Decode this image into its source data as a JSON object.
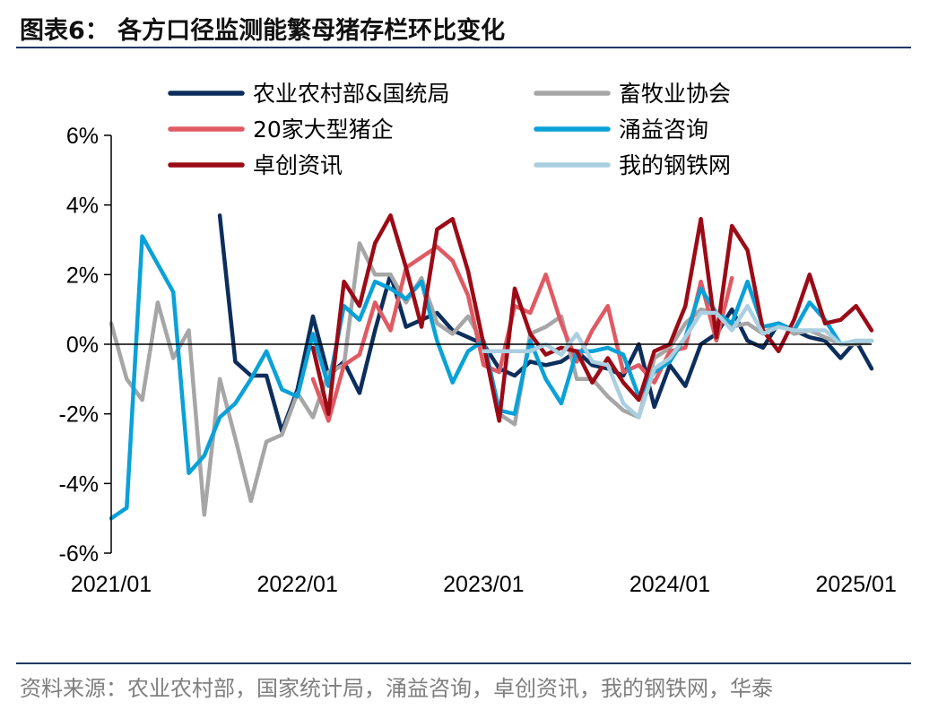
{
  "title": "图表6： 各方口径监测能繁母猪存栏环比变化",
  "source": "资料来源：农业农村部，国家统计局，涌益咨询，卓创资讯，我的钢铁网，华泰",
  "chart_data": {
    "type": "line",
    "title": "各方口径监测能繁母猪存栏环比变化",
    "xlabel": "",
    "ylabel": "",
    "y_unit": "%",
    "ylim": [
      -6,
      6
    ],
    "yticks": [
      6,
      4,
      2,
      0,
      -2,
      -4,
      -6
    ],
    "ytick_labels": [
      "6%",
      "4%",
      "2%",
      "0%",
      "-2%",
      "-4%",
      "-6%"
    ],
    "xlim": [
      "2021/01",
      "2025/02"
    ],
    "xtick_labels": [
      "2021/01",
      "2022/01",
      "2023/01",
      "2024/01",
      "2025/01"
    ],
    "grid": false,
    "legend_position": "top",
    "series": [
      {
        "name": "农业农村部&国统局",
        "color": "#0d2e5c",
        "x": [
          "2021/08",
          "2021/09",
          "2021/10",
          "2021/11",
          "2021/12",
          "2022/01",
          "2022/02",
          "2022/03",
          "2022/04",
          "2022/05",
          "2022/06",
          "2022/07",
          "2022/08",
          "2022/09",
          "2022/10",
          "2022/11",
          "2022/12",
          "2023/01",
          "2023/02",
          "2023/03",
          "2023/04",
          "2023/05",
          "2023/06",
          "2023/07",
          "2023/08",
          "2023/09",
          "2023/10",
          "2023/11",
          "2023/12",
          "2024/01",
          "2024/02",
          "2024/03",
          "2024/04",
          "2024/05",
          "2024/06",
          "2024/07",
          "2024/08",
          "2024/09",
          "2024/10",
          "2024/11",
          "2024/12",
          "2025/01",
          "2025/02"
        ],
        "values": [
          3.7,
          -0.5,
          -0.9,
          -0.9,
          -2.5,
          -1.3,
          0.8,
          -0.9,
          -0.5,
          -1.4,
          0.4,
          2.0,
          0.5,
          0.7,
          0.9,
          0.4,
          0.2,
          0.0,
          -0.7,
          -0.9,
          -0.5,
          -0.6,
          -0.5,
          -0.2,
          -0.6,
          -0.7,
          -0.9,
          0.0,
          -1.8,
          -0.6,
          -1.2,
          0.0,
          0.3,
          1.0,
          0.1,
          -0.1,
          0.6,
          0.4,
          0.2,
          0.1,
          -0.4,
          0.1,
          -0.7
        ]
      },
      {
        "name": "畜牧业协会",
        "color": "#a6a6a6",
        "x": [
          "2021/01",
          "2021/02",
          "2021/03",
          "2021/04",
          "2021/05",
          "2021/06",
          "2021/07",
          "2021/08",
          "2021/09",
          "2021/10",
          "2021/11",
          "2021/12",
          "2022/01",
          "2022/02",
          "2022/03",
          "2022/04",
          "2022/05",
          "2022/06",
          "2022/07",
          "2022/08",
          "2022/09",
          "2022/10",
          "2022/11",
          "2022/12",
          "2023/01",
          "2023/02",
          "2023/03",
          "2023/04",
          "2023/05",
          "2023/06",
          "2023/07",
          "2023/08",
          "2023/09",
          "2023/10",
          "2023/11",
          "2023/12",
          "2024/01",
          "2024/02",
          "2024/03",
          "2024/04",
          "2024/05",
          "2024/06",
          "2024/07",
          "2024/08",
          "2024/09",
          "2024/10",
          "2024/11",
          "2024/12",
          "2025/01",
          "2025/02"
        ],
        "values": [
          0.6,
          -1.0,
          -1.6,
          1.2,
          -0.4,
          0.4,
          -4.9,
          -1.0,
          -2.7,
          -4.5,
          -2.8,
          -2.6,
          -1.4,
          -2.1,
          -0.8,
          -0.6,
          2.9,
          2.0,
          2.0,
          1.2,
          1.9,
          0.6,
          0.3,
          0.8,
          0.0,
          -2.0,
          -2.3,
          0.3,
          0.5,
          0.8,
          -1.0,
          -1.0,
          -1.5,
          -1.9,
          -2.1,
          -0.4,
          -0.1,
          0.6,
          1.0,
          0.9,
          0.5,
          0.6,
          0.3,
          0.6,
          0.3,
          0.4,
          0.2,
          0.0,
          0.0,
          0.1
        ]
      },
      {
        "name": "20家大型猪企",
        "color": "#e05a63",
        "x": [
          "2022/02",
          "2022/03",
          "2022/04",
          "2022/05",
          "2022/06",
          "2022/07",
          "2022/08",
          "2022/09",
          "2022/10",
          "2022/11",
          "2022/12",
          "2023/01",
          "2023/02",
          "2023/03",
          "2023/04",
          "2023/05",
          "2023/06",
          "2023/07",
          "2023/08",
          "2023/09",
          "2023/10",
          "2023/11",
          "2023/12",
          "2024/01",
          "2024/02",
          "2024/03",
          "2024/04",
          "2024/05",
          "2024/06"
        ],
        "values": [
          -1.0,
          -2.2,
          -0.6,
          -0.3,
          1.2,
          0.4,
          2.2,
          2.5,
          2.8,
          2.4,
          1.4,
          -0.6,
          -0.8,
          1.1,
          0.9,
          2.0,
          0.6,
          -0.5,
          0.4,
          1.1,
          -0.8,
          -0.6,
          -1.1,
          -0.2,
          -0.1,
          1.8,
          0.1,
          1.9,
          null
        ]
      },
      {
        "name": "涌益咨询",
        "color": "#0aa1d8",
        "x": [
          "2021/01",
          "2021/02",
          "2021/03",
          "2021/04",
          "2021/05",
          "2021/06",
          "2021/07",
          "2021/08",
          "2021/09",
          "2021/10",
          "2021/11",
          "2021/12",
          "2022/01",
          "2022/02",
          "2022/03",
          "2022/04",
          "2022/05",
          "2022/06",
          "2022/07",
          "2022/08",
          "2022/09",
          "2022/10",
          "2022/11",
          "2022/12",
          "2023/01",
          "2023/02",
          "2023/03",
          "2023/04",
          "2023/05",
          "2023/06",
          "2023/07",
          "2023/08",
          "2023/09",
          "2023/10",
          "2023/11",
          "2023/12",
          "2024/01",
          "2024/02",
          "2024/03",
          "2024/04",
          "2024/05",
          "2024/06",
          "2024/07",
          "2024/08",
          "2024/09",
          "2024/10",
          "2024/11",
          "2024/12",
          "2025/01",
          "2025/02"
        ],
        "values": [
          -5.0,
          -4.7,
          3.1,
          2.3,
          1.5,
          -3.7,
          -3.2,
          -2.1,
          -1.7,
          -1.0,
          -0.2,
          -1.3,
          -1.5,
          0.3,
          -1.2,
          1.1,
          0.7,
          1.8,
          1.6,
          1.3,
          1.8,
          0.1,
          -1.1,
          -0.2,
          0.1,
          -1.9,
          -2.0,
          0.1,
          -1.0,
          -1.7,
          -0.2,
          -0.2,
          -0.1,
          -0.3,
          -1.5,
          -0.8,
          -0.5,
          0.2,
          1.6,
          0.9,
          0.6,
          1.8,
          0.5,
          0.6,
          0.4,
          1.2,
          0.7,
          0.0,
          0.1,
          0.1
        ]
      },
      {
        "name": "卓创资讯",
        "color": "#9b0b16",
        "x": [
          "2022/02",
          "2022/03",
          "2022/04",
          "2022/05",
          "2022/06",
          "2022/07",
          "2022/08",
          "2022/09",
          "2022/10",
          "2022/11",
          "2022/12",
          "2023/01",
          "2023/02",
          "2023/03",
          "2023/04",
          "2023/05",
          "2023/06",
          "2023/07",
          "2023/08",
          "2023/09",
          "2023/10",
          "2023/11",
          "2023/12",
          "2024/01",
          "2024/02",
          "2024/03",
          "2024/04",
          "2024/05",
          "2024/06",
          "2024/07",
          "2024/08",
          "2024/09",
          "2024/10",
          "2024/11",
          "2024/12",
          "2025/01",
          "2025/02"
        ],
        "values": [
          -0.1,
          -2.0,
          1.8,
          1.1,
          2.9,
          3.7,
          2.2,
          0.5,
          3.3,
          3.6,
          2.1,
          0.0,
          -2.2,
          1.6,
          0.3,
          -0.3,
          -0.1,
          -0.2,
          -1.1,
          -0.4,
          -1.1,
          -1.6,
          -0.2,
          0.0,
          1.1,
          3.6,
          0.2,
          3.4,
          2.7,
          0.4,
          -0.2,
          0.7,
          2.0,
          0.6,
          0.7,
          1.1,
          0.4
        ]
      },
      {
        "name": "我的钢铁网",
        "color": "#a9cfe0",
        "x": [
          "2023/01",
          "2023/02",
          "2023/03",
          "2023/04",
          "2023/05",
          "2023/06",
          "2023/07",
          "2023/08",
          "2023/09",
          "2023/10",
          "2023/11",
          "2023/12",
          "2024/01",
          "2024/02",
          "2024/03",
          "2024/04",
          "2024/05",
          "2024/06",
          "2024/07",
          "2024/08",
          "2024/09",
          "2024/10",
          "2024/11",
          "2024/12",
          "2025/01",
          "2025/02"
        ],
        "values": [
          -0.2,
          -0.2,
          -0.2,
          -0.2,
          0.0,
          -0.3,
          0.3,
          -0.5,
          -0.6,
          -1.7,
          -2.1,
          -0.7,
          -0.4,
          0.2,
          0.9,
          0.9,
          0.4,
          1.1,
          0.3,
          0.5,
          0.4,
          0.4,
          0.4,
          0.0,
          0.1,
          0.1
        ]
      }
    ]
  }
}
